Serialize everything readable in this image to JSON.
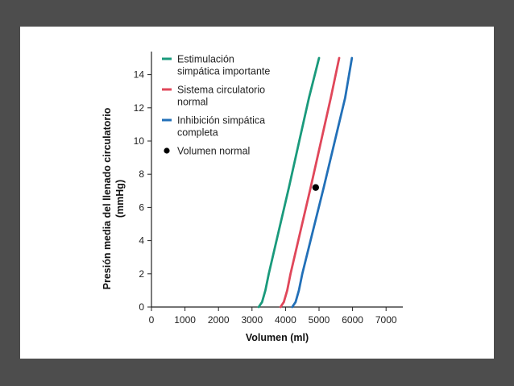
{
  "chart_data": {
    "type": "line",
    "title": "",
    "xlabel": "Volumen (ml)",
    "ylabel_line1": "Presión media del llenado circulatorio",
    "ylabel_line2": "(mmHg)",
    "xlim": [
      0,
      7500
    ],
    "ylim": [
      0,
      15
    ],
    "xticks": [
      0,
      1000,
      2000,
      3000,
      4000,
      5000,
      6000,
      7000
    ],
    "xtick_labels": [
      "0",
      "1000",
      "2000",
      "3000",
      "4000",
      "5000",
      "6000",
      "7000"
    ],
    "yticks": [
      0,
      2,
      4,
      6,
      8,
      10,
      12,
      14
    ],
    "ytick_labels": [
      "0",
      "2",
      "4",
      "6",
      "8",
      "10",
      "12",
      "14"
    ],
    "grid": false,
    "legend_position": "top-left",
    "series": [
      {
        "name_line1": "Estimulación",
        "name_line2": "simpática importante",
        "color": "#1a9a7c",
        "x": [
          3200,
          3300,
          3400,
          3500,
          3800,
          4100,
          4400,
          4700,
          5000
        ],
        "y": [
          0,
          0.3,
          1.0,
          2.0,
          4.6,
          7.2,
          9.9,
          12.6,
          15
        ]
      },
      {
        "name_line1": "Sistema circulatorio",
        "name_line2": "normal",
        "color": "#e0475a",
        "x": [
          3850,
          3950,
          4050,
          4150,
          4450,
          4750,
          5050,
          5350,
          5600
        ],
        "y": [
          0,
          0.3,
          1.0,
          2.0,
          4.6,
          7.2,
          9.9,
          12.6,
          15
        ]
      },
      {
        "name_line1": "Inhibición simpática",
        "name_line2": "completa",
        "color": "#2270b8",
        "x": [
          4200,
          4300,
          4400,
          4500,
          4820,
          5140,
          5460,
          5780,
          5980
        ],
        "y": [
          0,
          0.3,
          1.0,
          2.0,
          4.6,
          7.2,
          9.9,
          12.6,
          15
        ]
      }
    ],
    "markers": [
      {
        "name": "Volumen normal",
        "x": 4900,
        "y": 7.2,
        "color": "#000000"
      }
    ]
  }
}
